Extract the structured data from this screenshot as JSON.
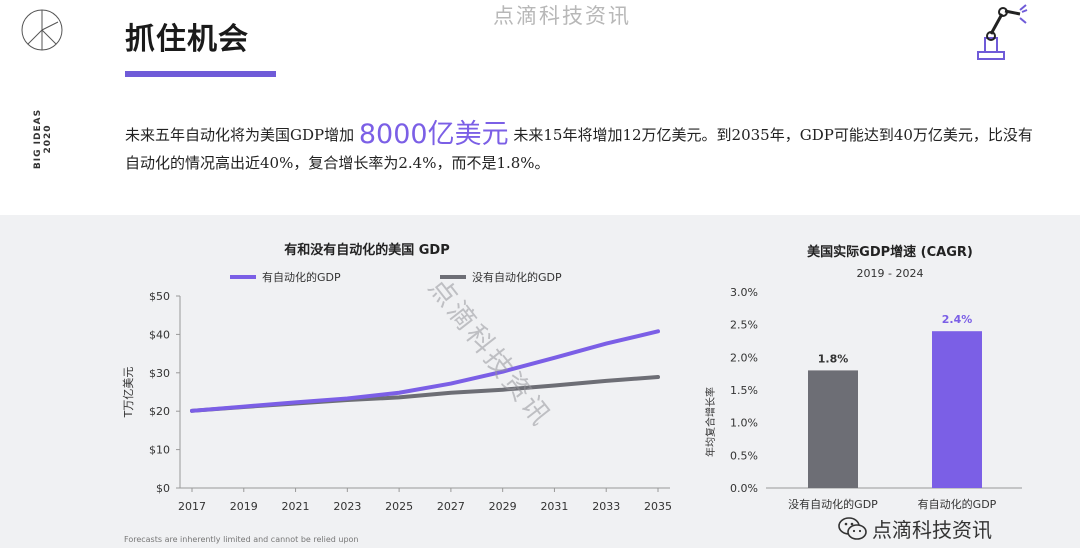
{
  "header": {
    "title": "抓住机会",
    "side_label_line1": "BIG IDEAS",
    "side_label_line2": "2020",
    "watermark": "点滴科技资讯"
  },
  "intro": {
    "text_before": "未来五年自动化将为美国GDP增加 ",
    "highlight": "8000亿美元",
    "text_after": " 未来15年将增加12万亿美元。到2035年，GDP可能达到40万亿美元，比没有自动化的情况高出近40%，复合增长率为2.4%，而不是1.8%。"
  },
  "footer": {
    "note": "Forecasts are inherently limited and cannot be relied upon",
    "wechat_label": "点滴科技资讯"
  },
  "colors": {
    "accent": "#7b5fe6",
    "grey_series": "#6d6e75",
    "panel_bg": "#f0f1f3"
  },
  "icons": [
    "ark-logo-icon",
    "robot-arm-icon",
    "wechat-icon"
  ],
  "chart_data": [
    {
      "type": "line",
      "title": "有和没有自动化的美国 GDP",
      "xlabel": "",
      "ylabel": "T万亿美元",
      "x": [
        2017,
        2019,
        2021,
        2023,
        2025,
        2027,
        2029,
        2031,
        2033,
        2035
      ],
      "x_ticks": [
        "2017",
        "2019",
        "2021",
        "2023",
        "2025",
        "2027",
        "2029",
        "2031",
        "2033",
        "2035"
      ],
      "y_ticks": [
        "$0",
        "$10",
        "$20",
        "$30",
        "$40",
        "$50"
      ],
      "ylim": [
        0,
        50
      ],
      "series": [
        {
          "name": "有自动化的GDP",
          "color": "#7b5fe6",
          "values": [
            20.1,
            21.2,
            22.3,
            23.3,
            24.8,
            27.2,
            30.3,
            33.9,
            37.6,
            40.8
          ]
        },
        {
          "name": "没有自动化的GDP",
          "color": "#6d6e75",
          "values": [
            20.1,
            21.1,
            22.0,
            22.9,
            23.6,
            24.8,
            25.6,
            26.7,
            27.9,
            28.9
          ]
        }
      ],
      "legend": "top",
      "grid": false
    },
    {
      "type": "bar",
      "title": "美国实际GDP增速 (CAGR)",
      "subtitle": "2019 - 2024",
      "xlabel": "",
      "ylabel": "年均复合增长率",
      "categories": [
        "没有自动化的GDP",
        "有自动化的GDP"
      ],
      "values": [
        1.8,
        2.4
      ],
      "data_labels": [
        "1.8%",
        "2.4%"
      ],
      "colors": [
        "#6d6e75",
        "#7b5fe6"
      ],
      "y_ticks": [
        "0.0%",
        "0.5%",
        "1.0%",
        "1.5%",
        "2.0%",
        "2.5%",
        "3.0%"
      ],
      "ylim": [
        0,
        3.0
      ],
      "grid": false
    }
  ]
}
